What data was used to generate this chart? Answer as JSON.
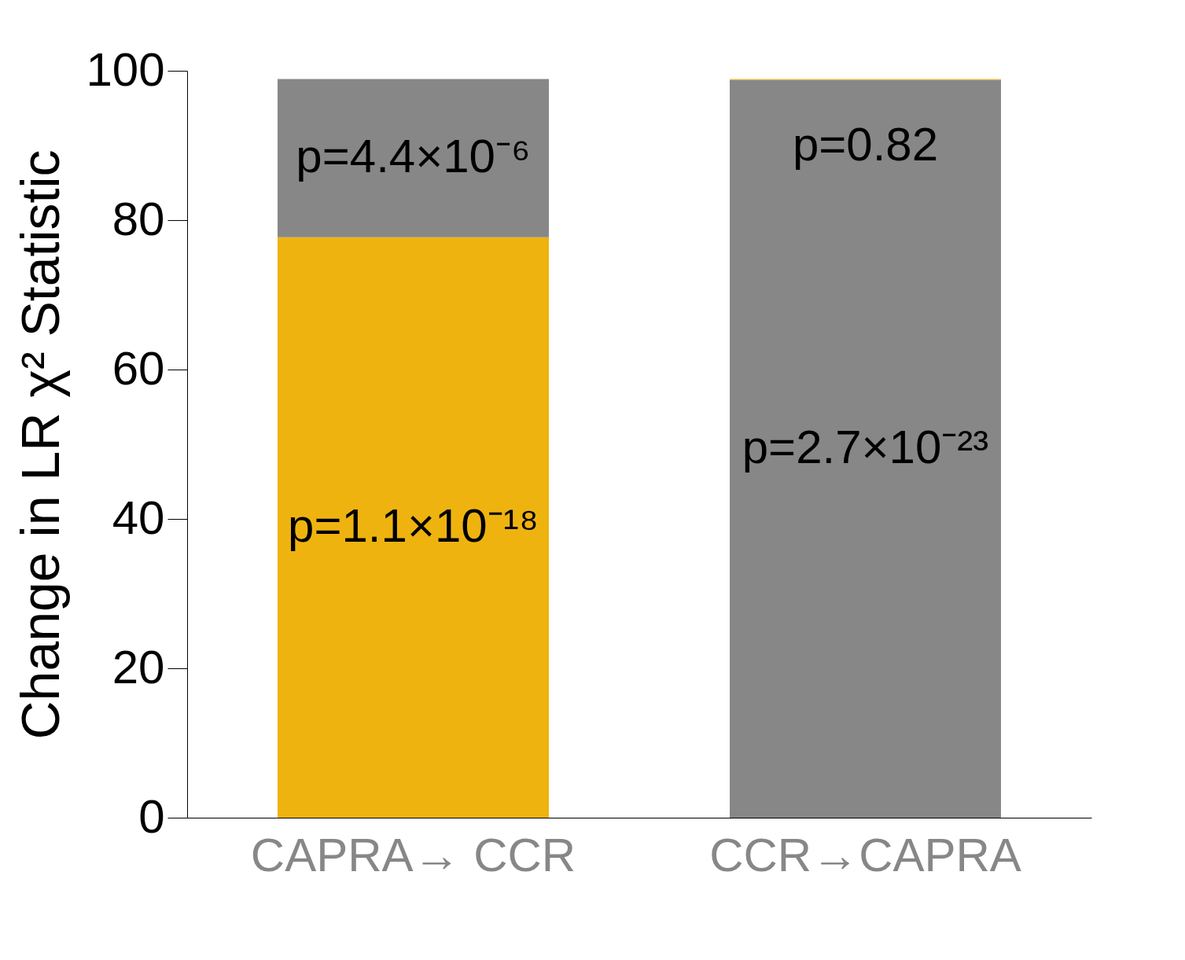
{
  "chart_data": {
    "type": "bar",
    "stacked": true,
    "ylabel": "Change in LR χ² Statistic",
    "categories": [
      "CAPRA→ CCR",
      "CCR→CAPRA"
    ],
    "series": [
      {
        "colors": [
          "#efb310",
          "#878787"
        ],
        "values": [
          77.7,
          98.8
        ]
      },
      {
        "colors": [
          "#878787",
          "#efb310"
        ],
        "values": [
          21.2,
          0.1
        ]
      }
    ],
    "ylim": [
      0,
      100
    ],
    "yticks": [
      0,
      20,
      40,
      60,
      80,
      100
    ],
    "grid": false,
    "annotations": [
      "p=1.1×10⁻¹⁸",
      "p=4.4×10⁻⁶",
      "p=2.7×10⁻²³",
      "p=0.82"
    ]
  }
}
